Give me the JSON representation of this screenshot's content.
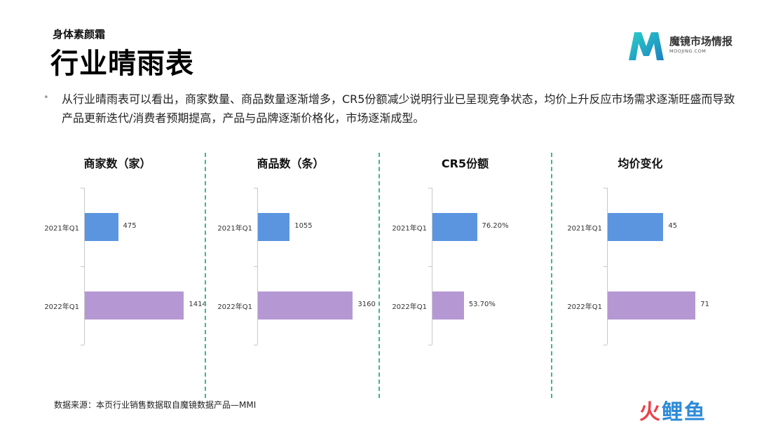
{
  "header": {
    "subtitle": "身体素颜霜",
    "title": "行业晴雨表"
  },
  "logo": {
    "name": "魔镜市场情报",
    "site": "MOOJING.COM"
  },
  "intro": {
    "bullet": "•",
    "text": "从行业晴雨表可以看出，商家数量、商品数量逐渐增多，CR5份额减少说明行业已呈现竞争状态，均价上升反应市场需求逐渐旺盛而导致产品更新迭代/消费者预期提高，产品与品牌逐渐价格化，市场逐渐成型。"
  },
  "colors": {
    "bar_2021": "#5b95e0",
    "bar_2022": "#b598d3",
    "divider": "#3cb88a",
    "wm1": "#e8434a",
    "wm2": "#2e8bd8"
  },
  "chart_data": [
    {
      "type": "bar",
      "title": "商家数（家）",
      "categories": [
        "2021年Q1",
        "2022年Q1"
      ],
      "values": [
        475,
        1414
      ],
      "labels": [
        "475",
        "1414"
      ],
      "xlim": [
        0,
        1500
      ]
    },
    {
      "type": "bar",
      "title": "商品数（条）",
      "categories": [
        "2021年Q1",
        "2022年Q1"
      ],
      "values": [
        1055,
        3160
      ],
      "labels": [
        "1055",
        "3160"
      ],
      "xlim": [
        0,
        3500
      ]
    },
    {
      "type": "bar",
      "title": "CR5份额",
      "categories": [
        "2021年Q1",
        "2022年Q1"
      ],
      "values": [
        76.2,
        53.7
      ],
      "labels": [
        "76.20%",
        "53.70%"
      ],
      "xlim": [
        0,
        180
      ]
    },
    {
      "type": "bar",
      "title": "均价变化",
      "categories": [
        "2021年Q1",
        "2022年Q1"
      ],
      "values": [
        45,
        71
      ],
      "labels": [
        "45",
        "71"
      ],
      "xlim": [
        0,
        85
      ]
    }
  ],
  "footer": {
    "source": "数据来源：本页行业销售数据取自魔镜数据产品—MMI"
  },
  "watermark": {
    "part1": "火",
    "part2": "鲤鱼"
  }
}
